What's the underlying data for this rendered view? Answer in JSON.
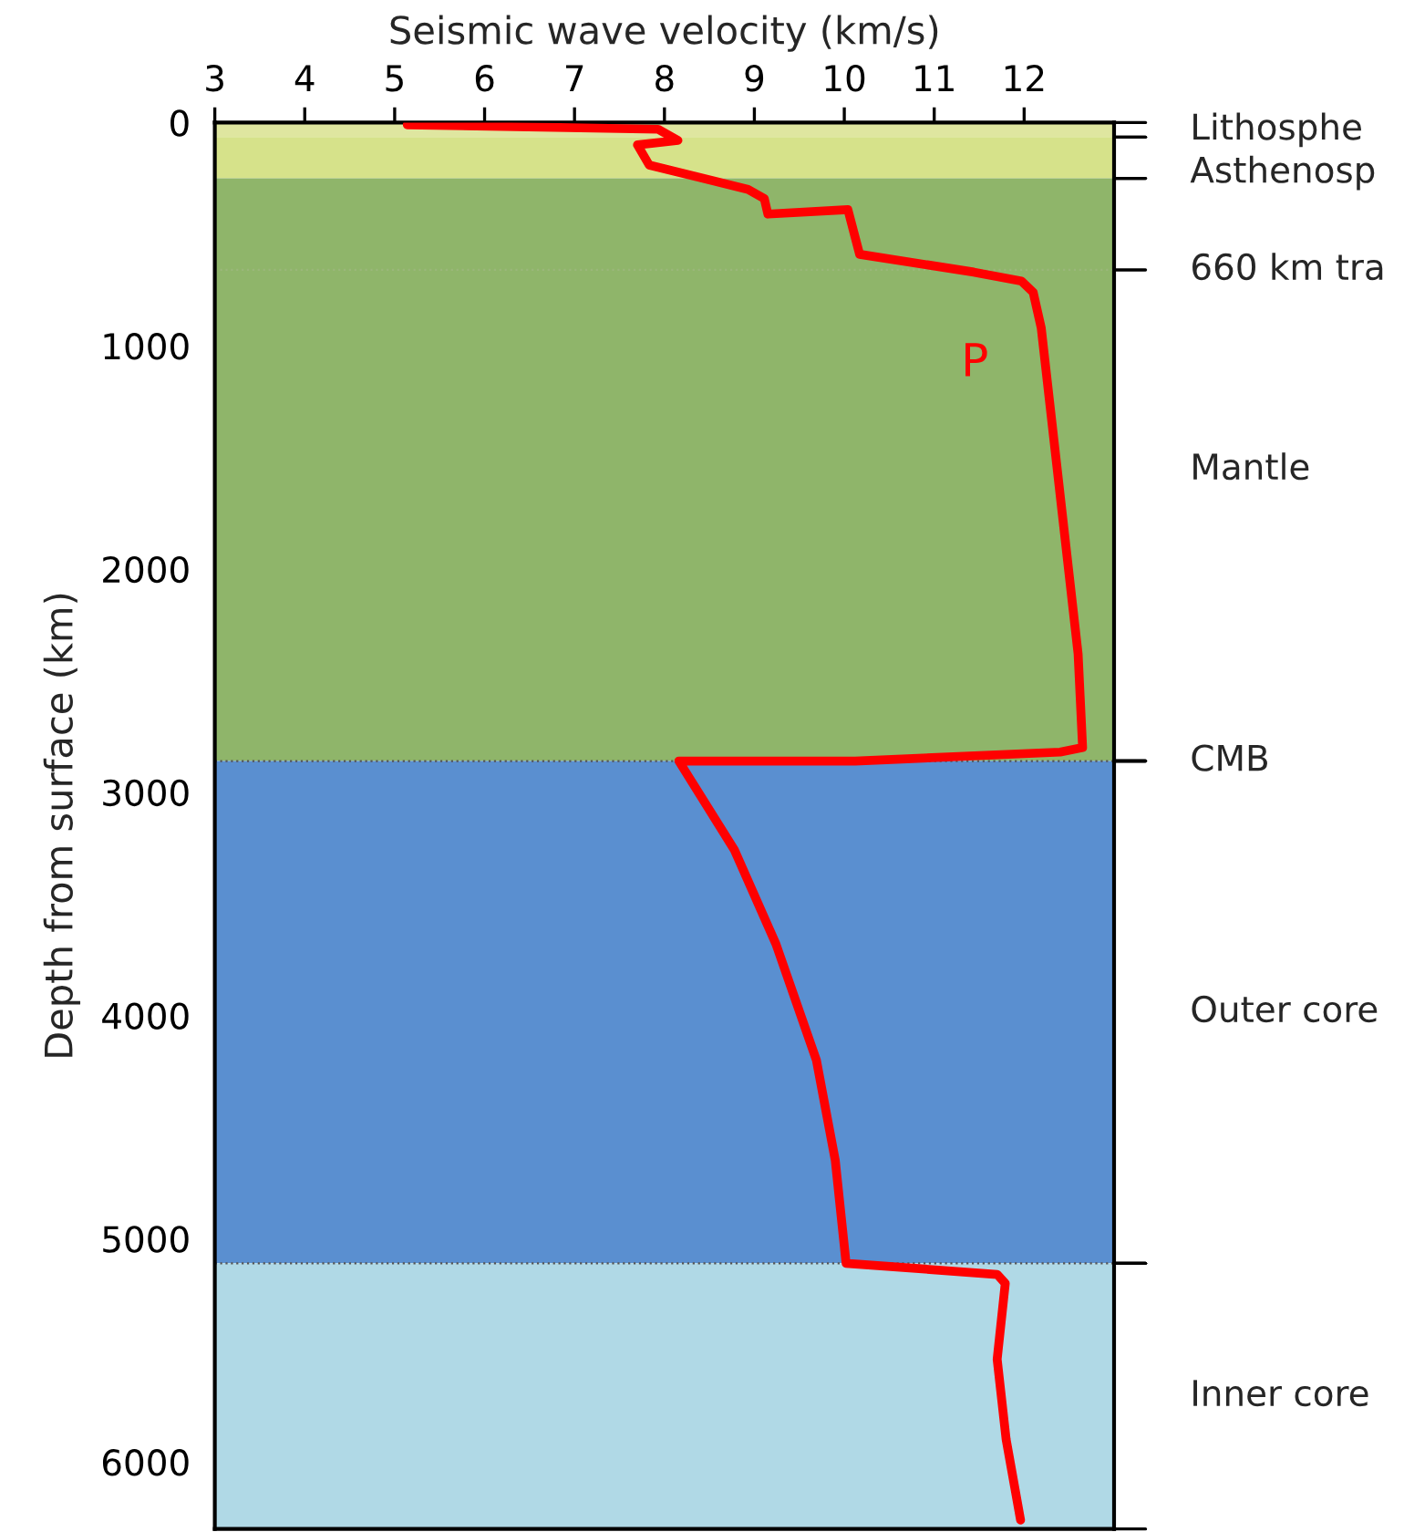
{
  "chart_data": {
    "type": "line",
    "xlabel": "Seismic wave velocity (km/s)",
    "ylabel": "Depth from surface (km)",
    "series": [
      {
        "color": "#ff0000",
        "x": [
          5.14,
          7.93,
          8.15,
          7.7,
          7.83,
          8.93,
          9.11,
          9.15,
          10.04,
          10.17,
          11.44,
          11.97,
          12.1,
          12.19,
          12.6,
          12.65,
          12.4,
          10.12,
          8.16,
          8.78,
          9.24,
          9.69,
          9.9,
          10.02,
          11.7,
          11.79,
          11.7,
          11.8,
          11.96
        ],
        "values": [
          10,
          30,
          80,
          100,
          190,
          300,
          340,
          410,
          390,
          590,
          670,
          710,
          760,
          920,
          2380,
          2800,
          2820,
          2860,
          2860,
          3260,
          3680,
          4200,
          4650,
          5110,
          5160,
          5200,
          5540,
          5900,
          6260
        ]
      }
    ],
    "xlim": [
      3,
      13
    ],
    "xticks": [
      3,
      4,
      5,
      6,
      7,
      8,
      9,
      10,
      11,
      12
    ],
    "ylim": [
      6300,
      0
    ],
    "yticks": [
      0,
      1000,
      2000,
      3000,
      4000,
      5000,
      6000
    ],
    "bands": [
      {
        "axis": "y",
        "from": 0,
        "to": 65,
        "label": "Lithosphe",
        "color": "#dfe6a0"
      },
      {
        "axis": "y",
        "from": 65,
        "to": 250,
        "label": "Asthenosp",
        "color": "#d6e28a"
      },
      {
        "axis": "y",
        "from": 250,
        "to": 2860,
        "label": "Mantle",
        "color": "#8fb56a"
      },
      {
        "axis": "y",
        "from": 2860,
        "to": 5110,
        "label": "Outer core",
        "color": "#5a8fd0"
      },
      {
        "axis": "y",
        "from": 5110,
        "to": 6300,
        "label": "Inner core",
        "color": "#b0d9e6"
      }
    ],
    "ref_lines": [
      {
        "axis": "y",
        "value": 660,
        "label": "660 km tra",
        "color": "#9ab77a",
        "line_style": "dotted"
      },
      {
        "axis": "y",
        "value": 2860,
        "label": "CMB",
        "color": "#555555",
        "line_style": "dotted"
      },
      {
        "axis": "y",
        "value": 5110,
        "label": null,
        "color": "#555555",
        "line_style": "dotted"
      }
    ],
    "annotations": [
      {
        "text": "P",
        "x": 12.24,
        "y": 1080
      }
    ],
    "grid": false,
    "legend": false,
    "marker": "none",
    "line_style": "solid"
  }
}
